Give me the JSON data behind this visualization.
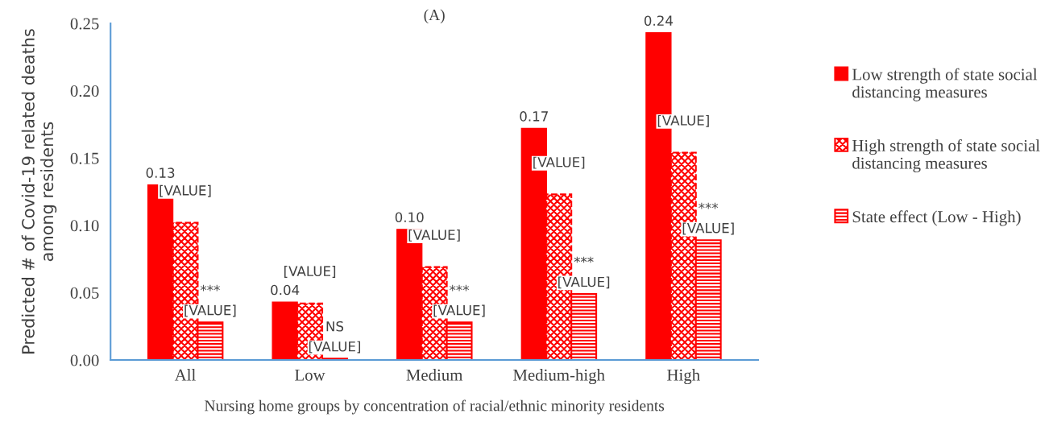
{
  "chart_data": {
    "type": "bar",
    "title": "(A)",
    "xlabel": "Nursing home groups by concentration of racial/ethnic minority residents",
    "ylabel": "Predicted # of Covid-19 related deaths among residents",
    "categories": [
      "All",
      "Low",
      "Medium",
      "Medium-high",
      "High"
    ],
    "series": [
      {
        "name": "Low strength of state social distancing measures",
        "color": "#ff0000",
        "values": [
          0.13,
          0.043,
          0.097,
          0.172,
          0.243
        ],
        "value_labels": [
          "0.13",
          "0.04",
          "0.10",
          "0.17",
          "0.24"
        ]
      },
      {
        "name": "High strength of state social distancing measures",
        "color": "#ff0000",
        "values": [
          0.102,
          0.042,
          0.069,
          0.123,
          0.154
        ],
        "value_labels": [
          "[VALUE]",
          "[VALUE]",
          "[VALUE]",
          "[VALUE]",
          "[VALUE]"
        ]
      },
      {
        "name": "State effect (Low - High)",
        "color": "#ff0000",
        "values": [
          0.028,
          0.001,
          0.028,
          0.049,
          0.089
        ],
        "value_labels": [
          "[VALUE]",
          "[VALUE]",
          "[VALUE]",
          "[VALUE]",
          "[VALUE]"
        ]
      }
    ],
    "annotations": [
      "***",
      "NS",
      "***",
      "***",
      "***"
    ],
    "ylim": [
      0,
      0.25
    ],
    "yticks": [
      "0.00",
      "0.05",
      "0.10",
      "0.15",
      "0.20",
      "0.25"
    ],
    "grid": false,
    "legend": "right"
  }
}
